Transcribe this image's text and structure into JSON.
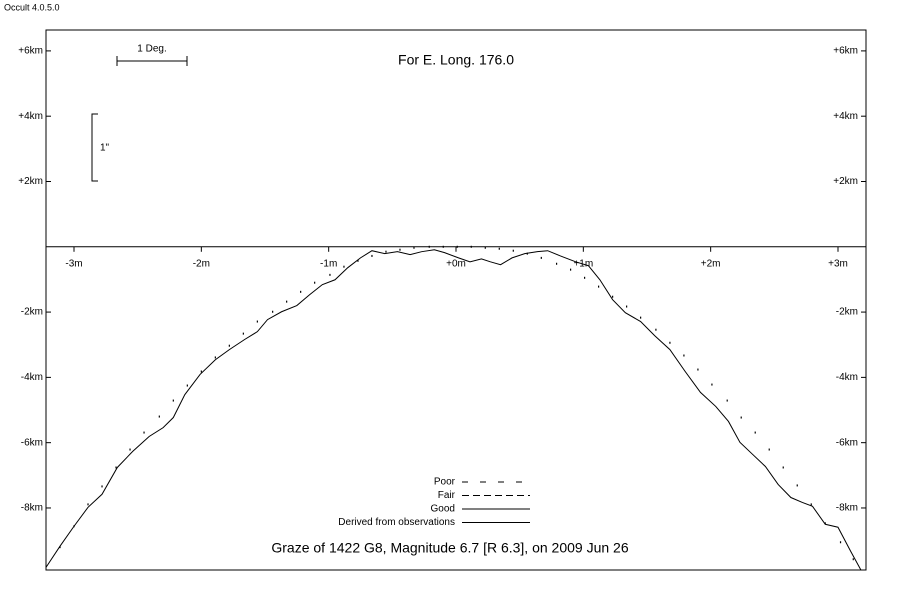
{
  "app_title": "Occult 4.0.5.0",
  "chart_data": {
    "type": "line",
    "title": "For E. Long. 176.0",
    "subtitle": "Graze of  1422 G8,  Magnitude 6.7 [R 6.3],  on 2009 Jun 26",
    "scale_labels": {
      "horizontal": "1 Deg.",
      "vertical": "1\""
    },
    "xlim": [
      -3.22,
      3.22
    ],
    "ylim": [
      -9.9,
      6.64
    ],
    "xticks": [
      {
        "value": -3,
        "label": "-3m"
      },
      {
        "value": -2,
        "label": "-2m"
      },
      {
        "value": -1,
        "label": "-1m"
      },
      {
        "value": 0,
        "label": "+0m"
      },
      {
        "value": 1,
        "label": "+1m"
      },
      {
        "value": 2,
        "label": "+2m"
      },
      {
        "value": 3,
        "label": "+3m"
      }
    ],
    "yticks": [
      {
        "value": 6,
        "label": "+6km"
      },
      {
        "value": 4,
        "label": "+4km"
      },
      {
        "value": 2,
        "label": "+2km"
      },
      {
        "value": -2,
        "label": "-2km"
      },
      {
        "value": -4,
        "label": "-4km"
      },
      {
        "value": -6,
        "label": "-6km"
      },
      {
        "value": -8,
        "label": "-8km"
      }
    ],
    "legend": [
      {
        "label": "Poor",
        "dash": "6 12"
      },
      {
        "label": "Fair",
        "dash": "7 4"
      },
      {
        "label": "Good",
        "dash": "none"
      },
      {
        "label": "Derived from observations",
        "dash": "none"
      }
    ],
    "series": [
      {
        "mode": "line",
        "color": "#000000",
        "x": [
          -3.22,
          -3.11,
          -3.0,
          -2.89,
          -2.78,
          -2.66,
          -2.54,
          -2.41,
          -2.3,
          -2.22,
          -2.13,
          -2.01,
          -1.89,
          -1.78,
          -1.66,
          -1.56,
          -1.48,
          -1.37,
          -1.25,
          -1.15,
          -1.05,
          -0.95,
          -0.85,
          -0.75,
          -0.66,
          -0.56,
          -0.46,
          -0.36,
          -0.27,
          -0.17,
          -0.09,
          0.02,
          0.11,
          0.2,
          0.27,
          0.35,
          0.44,
          0.54,
          0.64,
          0.72,
          0.82,
          0.94,
          1.04,
          1.13,
          1.23,
          1.33,
          1.45,
          1.56,
          1.68,
          1.8,
          1.92,
          2.04,
          2.14,
          2.23,
          2.33,
          2.43,
          2.53,
          2.63,
          2.72,
          2.8,
          2.9,
          3.0,
          3.1,
          3.18
        ],
        "values": [
          -9.82,
          -9.17,
          -8.56,
          -7.98,
          -7.58,
          -6.76,
          -6.27,
          -5.81,
          -5.54,
          -5.23,
          -4.53,
          -3.91,
          -3.46,
          -3.15,
          -2.84,
          -2.6,
          -2.23,
          -1.99,
          -1.8,
          -1.47,
          -1.16,
          -1.01,
          -0.64,
          -0.34,
          -0.12,
          -0.21,
          -0.15,
          -0.24,
          -0.15,
          -0.09,
          -0.18,
          -0.34,
          -0.46,
          -0.37,
          -0.46,
          -0.55,
          -0.34,
          -0.21,
          -0.15,
          -0.12,
          -0.28,
          -0.46,
          -0.58,
          -1.01,
          -1.62,
          -2.02,
          -2.29,
          -2.72,
          -3.15,
          -3.82,
          -4.46,
          -4.89,
          -5.35,
          -5.99,
          -6.36,
          -6.73,
          -7.28,
          -7.68,
          -7.83,
          -7.95,
          -8.5,
          -8.59,
          -9.33,
          -9.9
        ]
      },
      {
        "mode": "dots",
        "color": "#000000",
        "x": [
          -3.11,
          -3.0,
          -2.89,
          -2.78,
          -2.67,
          -2.56,
          -2.45,
          -2.33,
          -2.22,
          -2.11,
          -2.0,
          -1.89,
          -1.78,
          -1.67,
          -1.56,
          -1.44,
          -1.33,
          -1.22,
          -1.11,
          -0.99,
          -0.88,
          -0.77,
          -0.66,
          -0.55,
          -0.44,
          -0.33,
          -0.21,
          -0.1,
          0.01,
          0.12,
          0.23,
          0.34,
          0.45,
          0.56,
          0.67,
          0.79,
          0.9,
          1.01,
          1.12,
          1.23,
          1.34,
          1.45,
          1.57,
          1.68,
          1.79,
          1.9,
          2.01,
          2.13,
          2.24,
          2.35,
          2.46,
          2.57,
          2.68,
          2.79,
          2.9,
          3.02,
          3.12
        ],
        "values": [
          -9.2,
          -8.56,
          -7.89,
          -7.34,
          -6.76,
          -6.21,
          -5.69,
          -5.2,
          -4.71,
          -4.25,
          -3.82,
          -3.39,
          -3.03,
          -2.66,
          -2.29,
          -1.99,
          -1.68,
          -1.38,
          -1.1,
          -0.86,
          -0.61,
          -0.43,
          -0.28,
          -0.15,
          -0.09,
          -0.03,
          0,
          0,
          0,
          0,
          -0.03,
          -0.06,
          -0.12,
          -0.21,
          -0.34,
          -0.52,
          -0.7,
          -0.95,
          -1.22,
          -1.53,
          -1.83,
          -2.17,
          -2.54,
          -2.94,
          -3.33,
          -3.76,
          -4.22,
          -4.71,
          -5.23,
          -5.69,
          -6.21,
          -6.76,
          -7.31,
          -7.89,
          -8.47,
          -9.05,
          -9.57
        ]
      }
    ]
  }
}
